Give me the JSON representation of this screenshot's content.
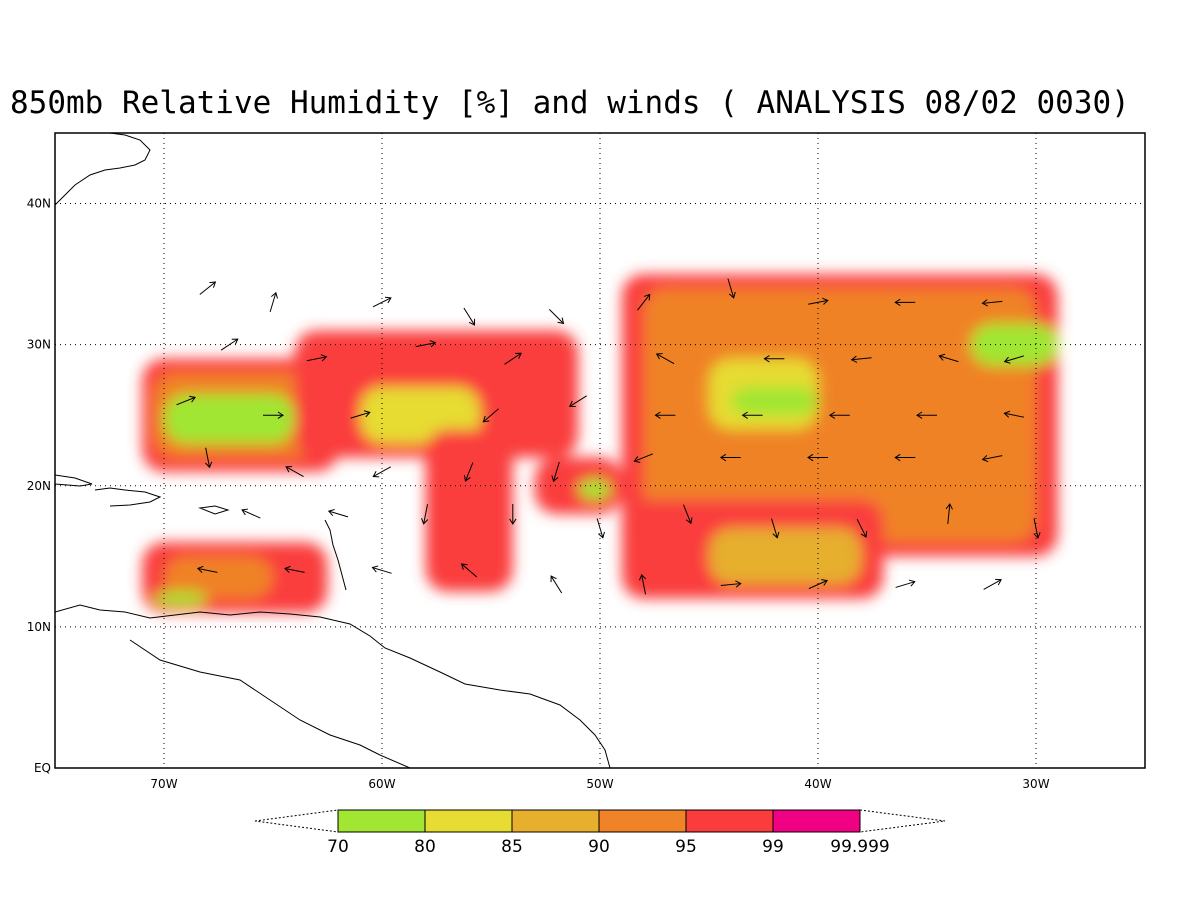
{
  "title": "850mb Relative Humidity [%] and winds ( ANALYSIS 08/02 0030)",
  "map": {
    "lon_min": -75,
    "lon_max": -25,
    "lat_min": 0,
    "lat_max": 45,
    "gridlines": "dotted"
  },
  "axes": {
    "lat_labels": [
      {
        "value": 40,
        "label": "40N"
      },
      {
        "value": 30,
        "label": "30N"
      },
      {
        "value": 20,
        "label": "20N"
      },
      {
        "value": 10,
        "label": "10N"
      },
      {
        "value": 0,
        "label": "EQ"
      }
    ],
    "lon_labels": [
      {
        "value": -70,
        "label": "70W"
      },
      {
        "value": -60,
        "label": "60W"
      },
      {
        "value": -50,
        "label": "50W"
      },
      {
        "value": -40,
        "label": "40W"
      },
      {
        "value": -30,
        "label": "30W"
      }
    ]
  },
  "colorbar": {
    "bins": [
      {
        "label": "70",
        "color": "#a0e632"
      },
      {
        "label": "80",
        "color": "#e6dc32"
      },
      {
        "label": "85",
        "color": "#e6af2d"
      },
      {
        "label": "90",
        "color": "#f08228"
      },
      {
        "label": "95",
        "color": "#fa3c3c"
      },
      {
        "label": "99",
        "color": "#f00082"
      }
    ],
    "end_label": "99.999"
  },
  "humidity_regions": [
    {
      "level": 95,
      "lon": [
        -71,
        -62
      ],
      "lat": [
        21,
        29
      ]
    },
    {
      "level": 90,
      "lon": [
        -70.5,
        -63
      ],
      "lat": [
        22,
        28
      ]
    },
    {
      "level": 70,
      "lon": [
        -70,
        -64
      ],
      "lat": [
        23,
        26.5
      ]
    },
    {
      "level": 95,
      "lon": [
        -71,
        -62.5
      ],
      "lat": [
        11,
        16
      ]
    },
    {
      "level": 90,
      "lon": [
        -70,
        -65
      ],
      "lat": [
        12,
        15
      ]
    },
    {
      "level": 70,
      "lon": [
        -70.5,
        -68
      ],
      "lat": [
        11.5,
        12.5
      ]
    },
    {
      "level": 95,
      "lon": [
        -64,
        -51
      ],
      "lat": [
        22,
        31
      ]
    },
    {
      "level": 80,
      "lon": [
        -61,
        -55.5
      ],
      "lat": [
        23,
        27
      ]
    },
    {
      "level": 95,
      "lon": [
        -49,
        -29
      ],
      "lat": [
        15,
        35
      ]
    },
    {
      "level": 90,
      "lon": [
        -48,
        -30
      ],
      "lat": [
        16,
        34
      ]
    },
    {
      "level": 80,
      "lon": [
        -45,
        -40
      ],
      "lat": [
        24,
        29
      ]
    },
    {
      "level": 70,
      "lon": [
        -44,
        -40
      ],
      "lat": [
        25,
        27
      ]
    },
    {
      "level": 95,
      "lon": [
        -49,
        -37
      ],
      "lat": [
        12,
        19
      ]
    },
    {
      "level": 85,
      "lon": [
        -45,
        -38
      ],
      "lat": [
        13,
        17
      ]
    },
    {
      "level": 70,
      "lon": [
        -33,
        -29
      ],
      "lat": [
        28.5,
        31.5
      ]
    },
    {
      "level": 95,
      "lon": [
        -58,
        -54
      ],
      "lat": [
        12.5,
        24
      ]
    },
    {
      "level": 95,
      "lon": [
        -53,
        -49
      ],
      "lat": [
        18,
        22
      ]
    },
    {
      "level": 70,
      "lon": [
        -51,
        -49.5
      ],
      "lat": [
        19,
        20.5
      ]
    }
  ],
  "winds": [
    {
      "lon": -68,
      "lat": 34,
      "u": 1,
      "v": 0.8
    },
    {
      "lon": -65,
      "lat": 33,
      "u": 0.3,
      "v": 1
    },
    {
      "lon": -60,
      "lat": 33,
      "u": 1,
      "v": 0.5
    },
    {
      "lon": -56,
      "lat": 32,
      "u": 0.5,
      "v": -0.8
    },
    {
      "lon": -52,
      "lat": 32,
      "u": 0.6,
      "v": -0.6
    },
    {
      "lon": -48,
      "lat": 33,
      "u": 0.7,
      "v": 0.9
    },
    {
      "lon": -44,
      "lat": 34,
      "u": 0.3,
      "v": -1
    },
    {
      "lon": -40,
      "lat": 33,
      "u": 1,
      "v": 0.2
    },
    {
      "lon": -36,
      "lat": 33,
      "u": -1,
      "v": 0
    },
    {
      "lon": -32,
      "lat": 33,
      "u": -1,
      "v": -0.1
    },
    {
      "lon": -67,
      "lat": 30,
      "u": 0.9,
      "v": 0.6
    },
    {
      "lon": -63,
      "lat": 29,
      "u": 1,
      "v": 0.2
    },
    {
      "lon": -58,
      "lat": 30,
      "u": 1,
      "v": 0.2
    },
    {
      "lon": -54,
      "lat": 29,
      "u": 0.9,
      "v": 0.6
    },
    {
      "lon": -47,
      "lat": 29,
      "u": -0.9,
      "v": 0.5
    },
    {
      "lon": -42,
      "lat": 29,
      "u": -1,
      "v": 0
    },
    {
      "lon": -38,
      "lat": 29,
      "u": -1,
      "v": -0.1
    },
    {
      "lon": -34,
      "lat": 29,
      "u": -1,
      "v": 0.3
    },
    {
      "lon": -31,
      "lat": 29,
      "u": -1,
      "v": -0.3
    },
    {
      "lon": -69,
      "lat": 26,
      "u": 1,
      "v": 0.4
    },
    {
      "lon": -65,
      "lat": 25,
      "u": 1,
      "v": 0
    },
    {
      "lon": -61,
      "lat": 25,
      "u": 1,
      "v": 0.3
    },
    {
      "lon": -55,
      "lat": 25,
      "u": -0.7,
      "v": -0.6
    },
    {
      "lon": -51,
      "lat": 26,
      "u": -0.8,
      "v": -0.5
    },
    {
      "lon": -47,
      "lat": 25,
      "u": -1,
      "v": 0
    },
    {
      "lon": -43,
      "lat": 25,
      "u": -1,
      "v": 0
    },
    {
      "lon": -39,
      "lat": 25,
      "u": -1,
      "v": 0
    },
    {
      "lon": -35,
      "lat": 25,
      "u": -1,
      "v": 0
    },
    {
      "lon": -31,
      "lat": 25,
      "u": -1,
      "v": 0.2
    },
    {
      "lon": -68,
      "lat": 22,
      "u": 0.2,
      "v": -1
    },
    {
      "lon": -64,
      "lat": 21,
      "u": -0.9,
      "v": 0.5
    },
    {
      "lon": -60,
      "lat": 21,
      "u": -0.9,
      "v": -0.5
    },
    {
      "lon": -56,
      "lat": 21,
      "u": -0.4,
      "v": -1
    },
    {
      "lon": -52,
      "lat": 21,
      "u": -0.3,
      "v": -1
    },
    {
      "lon": -48,
      "lat": 22,
      "u": -1,
      "v": -0.4
    },
    {
      "lon": -44,
      "lat": 22,
      "u": -1,
      "v": 0
    },
    {
      "lon": -40,
      "lat": 22,
      "u": -1,
      "v": 0
    },
    {
      "lon": -36,
      "lat": 22,
      "u": -1,
      "v": 0
    },
    {
      "lon": -32,
      "lat": 22,
      "u": -1,
      "v": -0.2
    },
    {
      "lon": -66,
      "lat": 18,
      "u": -0.9,
      "v": 0.4
    },
    {
      "lon": -62,
      "lat": 18,
      "u": -1,
      "v": 0.3
    },
    {
      "lon": -58,
      "lat": 18,
      "u": -0.2,
      "v": -1
    },
    {
      "lon": -54,
      "lat": 18,
      "u": 0,
      "v": -1
    },
    {
      "lon": -50,
      "lat": 17,
      "u": 0.3,
      "v": -1
    },
    {
      "lon": -46,
      "lat": 18,
      "u": 0.4,
      "v": -1
    },
    {
      "lon": -42,
      "lat": 17,
      "u": 0.3,
      "v": -1
    },
    {
      "lon": -38,
      "lat": 17,
      "u": 0.5,
      "v": -1
    },
    {
      "lon": -34,
      "lat": 18,
      "u": 0.1,
      "v": 1
    },
    {
      "lon": -30,
      "lat": 17,
      "u": 0.2,
      "v": -1
    },
    {
      "lon": -68,
      "lat": 14,
      "u": -1,
      "v": 0.2
    },
    {
      "lon": -64,
      "lat": 14,
      "u": -1,
      "v": 0.2
    },
    {
      "lon": -60,
      "lat": 14,
      "u": -1,
      "v": 0.3
    },
    {
      "lon": -56,
      "lat": 14,
      "u": -0.7,
      "v": 0.6
    },
    {
      "lon": -52,
      "lat": 13,
      "u": -0.5,
      "v": 0.8
    },
    {
      "lon": -48,
      "lat": 13,
      "u": -0.2,
      "v": 1
    },
    {
      "lon": -44,
      "lat": 13,
      "u": 1,
      "v": 0.1
    },
    {
      "lon": -40,
      "lat": 13,
      "u": 0.9,
      "v": 0.4
    },
    {
      "lon": -36,
      "lat": 13,
      "u": 1,
      "v": 0.3
    },
    {
      "lon": -32,
      "lat": 13,
      "u": 0.9,
      "v": 0.5
    }
  ]
}
